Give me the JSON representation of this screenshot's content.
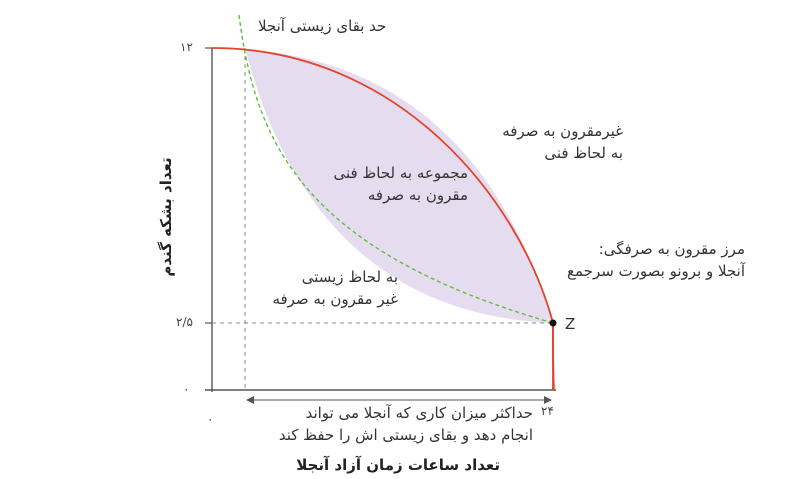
{
  "diagram": {
    "labels": {
      "survival_limit": "حد بقای زیستی آنجلا",
      "tech_infeasible_1": "غیرمقرون به صرفه",
      "tech_infeasible_2": "به لحاظ فنی",
      "tech_feasible_1": "مجموعه به لحاظ فنی",
      "tech_feasible_2": "مقرون به صرفه",
      "frontier_1": "مرز مقرون به صرفگی:",
      "frontier_2": "آنجلا و برونو بصورت سرجمع",
      "bio_infeasible_1": "به لحاظ زیستی",
      "bio_infeasible_2": "غیر مقرون به صرفه",
      "max_work_1": "حداکثر میزان کاری که آنجلا می تواند",
      "max_work_2": "انجام دهد و بقای زیستی اش را حفظ کند",
      "point_z": "Z"
    },
    "axes": {
      "y_title": "تعداد بشکه گندم",
      "x_title": "تعداد ساعات زمان آزاد آنجلا",
      "y_ticks": [
        "۱۲",
        "۲/۵",
        "۰"
      ],
      "x_ticks": [
        "۰",
        "۲۴"
      ]
    },
    "colors": {
      "frontier": "#e0452c",
      "survival_curve": "#5fbf3a",
      "feasible_fill": "#e6dcef",
      "axis": "#555555",
      "dashed_guides": "#888888"
    }
  }
}
